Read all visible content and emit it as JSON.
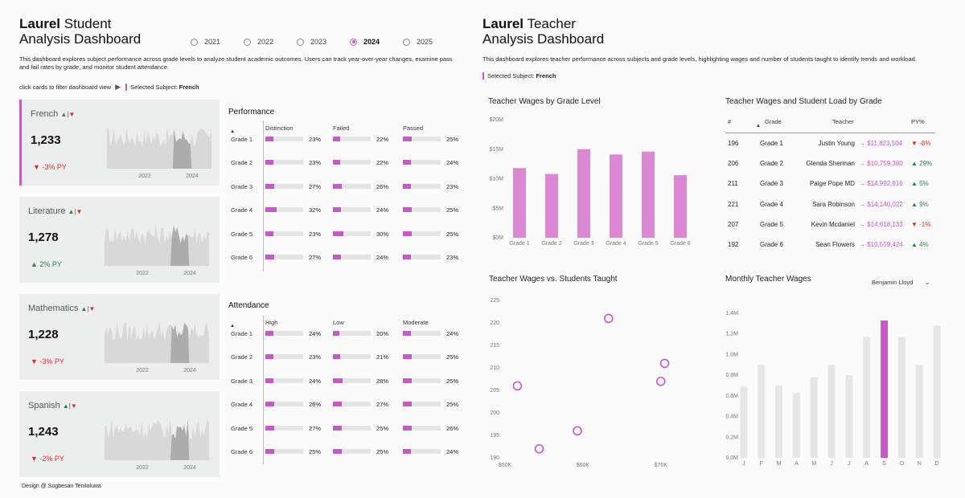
{
  "left": {
    "title_bold": "Laurel",
    "title_rest": "Student",
    "title_line2": "Analysis Dashboard",
    "description": "This dashboard explores subject performance across grade levels to analyze student academic outcomes. Users can track year-over-year changes, examine pass and fail rates by grade, and monitor student attendance.",
    "years": [
      "2021",
      "2022",
      "2023",
      "2024",
      "2025"
    ],
    "selected_year": "2024",
    "click_hint": "click cards to filter dashboard view",
    "selected_label": "Selected Subject:",
    "selected_value": "French",
    "cards": [
      {
        "name": "French",
        "value": "1,233",
        "py": "▼ -3% PY",
        "trend": "down",
        "axis": [
          "2022",
          "2024"
        ]
      },
      {
        "name": "Literature",
        "value": "1,278",
        "py": "▲ 2% PY",
        "trend": "up",
        "axis": [
          "2022",
          "2024"
        ]
      },
      {
        "name": "Mathematics",
        "value": "1,228",
        "py": "▼ -3% PY",
        "trend": "down",
        "axis": [
          "2022",
          "2024"
        ]
      },
      {
        "name": "Spanish",
        "value": "1,243",
        "py": "▼ -2% PY",
        "trend": "down",
        "axis": [
          "2022",
          "2024"
        ]
      }
    ],
    "performance": {
      "title": "Performance",
      "columns": [
        "Distinction",
        "Failed",
        "Passed"
      ],
      "grades": [
        "Grade 1",
        "Grade 2",
        "Grade 3",
        "Grade 4",
        "Grade 5",
        "Grade 6"
      ],
      "values": [
        [
          23,
          22,
          25
        ],
        [
          23,
          22,
          24
        ],
        [
          27,
          26,
          23
        ],
        [
          32,
          24,
          25
        ],
        [
          23,
          30,
          25
        ],
        [
          27,
          24,
          23
        ]
      ],
      "labels": [
        [
          "23%",
          "22%",
          "25%"
        ],
        [
          "23%",
          "22%",
          "24%"
        ],
        [
          "27%",
          "26%",
          "23%"
        ],
        [
          "32%",
          "24%",
          "25%"
        ],
        [
          "23%",
          "30%",
          "25%"
        ],
        [
          "27%",
          "24%",
          "23%"
        ]
      ]
    },
    "attendance": {
      "title": "Attendance",
      "columns": [
        "High",
        "Low",
        "Moderate"
      ],
      "grades": [
        "Grade 1",
        "Grade 2",
        "Grade 3",
        "Grade 4",
        "Grade 5",
        "Grade 6"
      ],
      "values": [
        [
          24,
          20,
          24
        ],
        [
          23,
          21,
          25
        ],
        [
          24,
          28,
          25
        ],
        [
          26,
          27,
          25
        ],
        [
          27,
          25,
          26
        ],
        [
          25,
          25,
          24
        ]
      ],
      "labels": [
        [
          "24%",
          "20%",
          "24%"
        ],
        [
          "23%",
          "21%",
          "25%"
        ],
        [
          "24%",
          "28%",
          "25%"
        ],
        [
          "26%",
          "27%",
          "25%"
        ],
        [
          "27%",
          "25%",
          "26%"
        ],
        [
          "25%",
          "25%",
          "24%"
        ]
      ]
    },
    "footer": "Design @ Sogbesan Teniloluwa"
  },
  "right": {
    "title_bold": "Laurel",
    "title_rest": "Teacher",
    "title_line2": "Analysis Dashboard",
    "description": "This dashboard explores teacher performance across subjects and grade levels, highlighting wages and number of students taught to identify trends and workload.",
    "selected_label": "Selected Subject:",
    "selected_value": "French",
    "table": {
      "title": "Teacher Wages and Student Load by Grade",
      "headers": [
        "#",
        "Grade",
        "Teacher",
        "PY%"
      ],
      "rows": [
        {
          "n": "196",
          "grade": "Grade 1",
          "teacher": "Justin Young",
          "wage": "→ $11,823,504",
          "py": "▼ -8%",
          "trend": "down"
        },
        {
          "n": "206",
          "grade": "Grade 2",
          "teacher": "Glenda Sherman",
          "wage": "→ $10,759,380",
          "py": "▲ 29%",
          "trend": "up"
        },
        {
          "n": "211",
          "grade": "Grade 3",
          "teacher": "Paige Pope MD",
          "wage": "→ $14,992,816",
          "py": "▲ 5%",
          "trend": "up"
        },
        {
          "n": "221",
          "grade": "Grade 4",
          "teacher": "Sara Robinson",
          "wage": "→ $14,140,022",
          "py": "▲ 9%",
          "trend": "up"
        },
        {
          "n": "207",
          "grade": "Grade 5",
          "teacher": "Kevin Mcdaniel",
          "wage": "→ $14,618,133",
          "py": "▼ -1%",
          "trend": "down"
        },
        {
          "n": "192",
          "grade": "Grade 6",
          "teacher": "Sean Flowers",
          "wage": "→ $10,559,424",
          "py": "▲ 4%",
          "trend": "up"
        }
      ]
    },
    "monthly_filter": "Benjamin Lloyd"
  },
  "colors": {
    "accent": "#c858c8",
    "bar": "#dc87d2",
    "grey": "#e6e6e6",
    "up": "#2e7d4f",
    "down": "#d0312d"
  },
  "chart_data": [
    {
      "id": "wages_by_grade",
      "type": "bar",
      "title": "Teacher Wages by Grade Level",
      "categories": [
        "Grade 1",
        "Grade 2",
        "Grade 3",
        "Grade 4",
        "Grade 5",
        "Grade 6"
      ],
      "values": [
        11.8,
        10.8,
        15.0,
        14.1,
        14.6,
        10.6
      ],
      "unit": "$M",
      "ylim": [
        0,
        20
      ],
      "yticks": [
        "$0M",
        "$5M",
        "$10M",
        "$15M",
        "$20M"
      ]
    },
    {
      "id": "wages_vs_students",
      "type": "scatter",
      "title": "Teacher Wages vs. Students Taught",
      "points": [
        {
          "x": 52.0,
          "y": 206
        },
        {
          "x": 54.8,
          "y": 192
        },
        {
          "x": 59.7,
          "y": 196
        },
        {
          "x": 63.7,
          "y": 221
        },
        {
          "x": 70.4,
          "y": 207
        },
        {
          "x": 70.9,
          "y": 211
        }
      ],
      "xlim": [
        50,
        76
      ],
      "ylim": [
        190,
        225
      ],
      "xticks": [
        "$50K",
        "$60K",
        "$70K"
      ],
      "xtick_values": [
        50,
        60,
        70
      ],
      "yticks": [
        "190",
        "195",
        "200",
        "205",
        "210",
        "215",
        "220",
        "225"
      ]
    },
    {
      "id": "monthly_wages",
      "type": "bar",
      "title": "Monthly Teacher Wages",
      "categories": [
        "J",
        "F",
        "M",
        "A",
        "M",
        "J",
        "J",
        "A",
        "S",
        "O",
        "N",
        "D"
      ],
      "values": [
        0.69,
        0.9,
        0.7,
        0.63,
        0.78,
        0.9,
        0.8,
        1.17,
        1.33,
        1.17,
        0.9,
        1.28
      ],
      "highlight_index": 8,
      "ylim": [
        0,
        1.4
      ],
      "yticks": [
        "0.0M",
        "0.2M",
        "0.4M",
        "0.6M",
        "0.8M",
        "1.0M",
        "1.2M",
        "1.4M"
      ]
    }
  ]
}
